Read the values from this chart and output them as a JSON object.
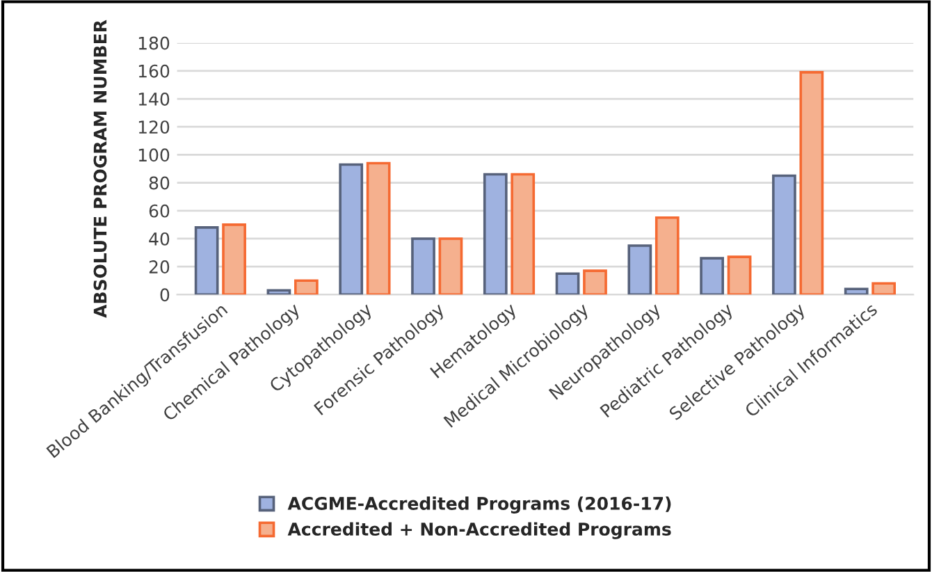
{
  "chart_data": {
    "type": "bar",
    "ylabel": "ABSOLUTE PROGRAM NUMBER",
    "categories": [
      "Blood Banking/Transfusion",
      "Chemical Pathology",
      "Cytopathology",
      "Forensic Pathology",
      "Hematology",
      "Medical Microbiology",
      "Neuropathology",
      "Pediatric Pathology",
      "Selective Pathology",
      "Clinical Informatics"
    ],
    "series": [
      {
        "name": "ACGME-Accredited Programs (2016-17)",
        "color": "#9fb2e0",
        "values": [
          48,
          3,
          93,
          40,
          86,
          15,
          35,
          26,
          85,
          4
        ]
      },
      {
        "name": "Accredited + Non-Accredited Programs",
        "color": "#f5b08e",
        "values": [
          50,
          10,
          94,
          40,
          86,
          17,
          55,
          27,
          159,
          8
        ]
      }
    ],
    "ylim": [
      0,
      180
    ],
    "yticks": [
      0,
      20,
      40,
      60,
      80,
      100,
      120,
      140,
      160,
      180
    ],
    "grid": "y",
    "legend": "bottom"
  }
}
